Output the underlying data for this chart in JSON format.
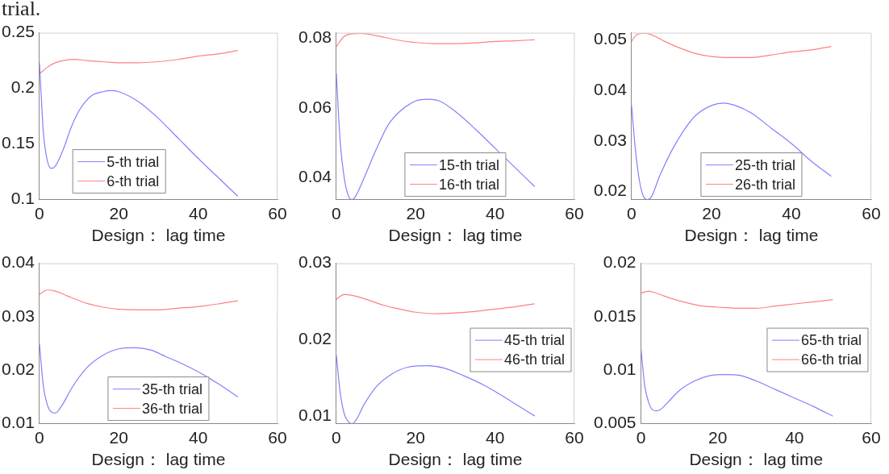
{
  "chart_data": [
    {
      "type": "line",
      "annotations": [
        "trial."
      ],
      "xlabel": "Design： lag time",
      "xlim": [
        0,
        60
      ],
      "xticks": [
        0,
        20,
        40,
        60
      ],
      "ylim": [
        0.1,
        0.25
      ],
      "yticks": [
        0.1,
        0.15,
        0.2,
        0.25
      ],
      "legend": "bottom left",
      "series": [
        {
          "name": "5-th trial",
          "color": "#8080ff",
          "x": [
            0,
            0.5,
            1,
            2,
            3,
            4,
            6,
            8,
            10,
            13,
            16,
            18,
            20,
            25,
            30,
            35,
            40,
            45,
            50
          ],
          "values": [
            0.223,
            0.19,
            0.16,
            0.135,
            0.128,
            0.13,
            0.145,
            0.165,
            0.18,
            0.193,
            0.197,
            0.198,
            0.197,
            0.188,
            0.173,
            0.155,
            0.137,
            0.12,
            0.103
          ]
        },
        {
          "name": "6-th trial",
          "color": "#ff8080",
          "x": [
            0,
            2,
            4,
            6,
            9,
            12,
            16,
            20,
            25,
            30,
            35,
            40,
            45,
            50
          ],
          "values": [
            0.213,
            0.219,
            0.223,
            0.225,
            0.226,
            0.225,
            0.224,
            0.223,
            0.223,
            0.224,
            0.226,
            0.229,
            0.231,
            0.234
          ]
        }
      ]
    },
    {
      "type": "line",
      "xlabel": "Design： lag time",
      "xlim": [
        0,
        60
      ],
      "xticks": [
        0,
        20,
        40,
        60
      ],
      "ylim": [
        0.0338,
        0.0815
      ],
      "yticks": [
        0.04,
        0.06,
        0.08
      ],
      "legend": "bottom",
      "series": [
        {
          "name": "15-th trial",
          "color": "#8080ff",
          "x": [
            0,
            1,
            2,
            3,
            4,
            5,
            7,
            10,
            13,
            16,
            20,
            23,
            26,
            30,
            35,
            40,
            45,
            50
          ],
          "values": [
            0.07,
            0.05,
            0.04,
            0.035,
            0.0338,
            0.035,
            0.04,
            0.048,
            0.055,
            0.059,
            0.062,
            0.0625,
            0.062,
            0.059,
            0.054,
            0.0485,
            0.043,
            0.0375
          ]
        },
        {
          "name": "16-th trial",
          "color": "#ff8080",
          "x": [
            0,
            2,
            4,
            6,
            10,
            15,
            20,
            25,
            30,
            35,
            40,
            45,
            50
          ],
          "values": [
            0.0775,
            0.0805,
            0.0812,
            0.0813,
            0.0807,
            0.0795,
            0.0787,
            0.0784,
            0.0784,
            0.0786,
            0.079,
            0.0792,
            0.0795
          ]
        }
      ]
    },
    {
      "type": "line",
      "xlabel": "Design： lag time",
      "xlim": [
        0,
        60
      ],
      "xticks": [
        0,
        20,
        40,
        60
      ],
      "ylim": [
        0.0184,
        0.0514
      ],
      "yticks": [
        0.02,
        0.03,
        0.04,
        0.05
      ],
      "legend": "bottom",
      "series": [
        {
          "name": "25-th trial",
          "color": "#8080ff",
          "x": [
            0,
            1,
            2,
            3,
            4,
            5,
            7,
            10,
            13,
            16,
            20,
            23,
            26,
            30,
            35,
            40,
            45,
            50
          ],
          "values": [
            0.037,
            0.028,
            0.022,
            0.019,
            0.0184,
            0.019,
            0.023,
            0.028,
            0.032,
            0.035,
            0.037,
            0.0375,
            0.037,
            0.0355,
            0.0325,
            0.0295,
            0.026,
            0.023
          ]
        },
        {
          "name": "26-th trial",
          "color": "#ff8080",
          "x": [
            0,
            1,
            3,
            5,
            8,
            12,
            16,
            20,
            25,
            30,
            35,
            40,
            45,
            50
          ],
          "values": [
            0.0497,
            0.0508,
            0.0513,
            0.051,
            0.0498,
            0.0484,
            0.0473,
            0.0467,
            0.0465,
            0.0465,
            0.047,
            0.0476,
            0.048,
            0.0487
          ]
        }
      ]
    },
    {
      "type": "line",
      "xlabel": "Design： lag time",
      "xlim": [
        0,
        60
      ],
      "xticks": [
        0,
        20,
        40,
        60
      ],
      "ylim": [
        0.01,
        0.04
      ],
      "yticks": [
        0.01,
        0.02,
        0.03,
        0.04
      ],
      "legend": "bottom",
      "series": [
        {
          "name": "35-th trial",
          "color": "#8080ff",
          "x": [
            0,
            1,
            2,
            3,
            4,
            6,
            8,
            12,
            16,
            20,
            24,
            28,
            32,
            36,
            40,
            45,
            50
          ],
          "values": [
            0.025,
            0.017,
            0.0135,
            0.0122,
            0.012,
            0.0138,
            0.0165,
            0.0205,
            0.0228,
            0.024,
            0.0242,
            0.0238,
            0.0225,
            0.0212,
            0.0197,
            0.0175,
            0.015
          ]
        },
        {
          "name": "36-th trial",
          "color": "#ff8080",
          "x": [
            0,
            2,
            4,
            8,
            12,
            16,
            20,
            25,
            30,
            35,
            40,
            45,
            50
          ],
          "values": [
            0.0342,
            0.035,
            0.0348,
            0.0336,
            0.0325,
            0.0318,
            0.0314,
            0.0313,
            0.0313,
            0.0316,
            0.0319,
            0.0324,
            0.033
          ]
        }
      ]
    },
    {
      "type": "line",
      "xlabel": "Design： lag time",
      "xlim": [
        0,
        60
      ],
      "xticks": [
        0,
        20,
        40,
        60
      ],
      "ylim": [
        0.009,
        0.03
      ],
      "yticks": [
        0.01,
        0.02,
        0.03
      ],
      "legend": "right",
      "series": [
        {
          "name": "45-th trial",
          "color": "#8080ff",
          "x": [
            0,
            1,
            2,
            3,
            4,
            5,
            7,
            10,
            14,
            18,
            23,
            27,
            32,
            37,
            42,
            46,
            50
          ],
          "values": [
            0.018,
            0.013,
            0.0103,
            0.0093,
            0.009,
            0.0095,
            0.0115,
            0.0138,
            0.0155,
            0.0164,
            0.0166,
            0.0163,
            0.0153,
            0.0141,
            0.0126,
            0.0113,
            0.01
          ]
        },
        {
          "name": "46-th trial",
          "color": "#ff8080",
          "x": [
            0,
            2,
            4,
            8,
            12,
            16,
            20,
            25,
            30,
            35,
            40,
            45,
            50
          ],
          "values": [
            0.0253,
            0.0259,
            0.0258,
            0.0252,
            0.0245,
            0.024,
            0.0236,
            0.0234,
            0.0235,
            0.0237,
            0.024,
            0.0243,
            0.0247
          ]
        }
      ]
    },
    {
      "type": "line",
      "xlabel": "Design： lag time",
      "xlim": [
        0,
        60
      ],
      "xticks": [
        0,
        20,
        40,
        60
      ],
      "ylim": [
        0.005,
        0.02
      ],
      "yticks": [
        0.005,
        0.01,
        0.015,
        0.02
      ],
      "legend": "right",
      "series": [
        {
          "name": "65-th trial",
          "color": "#8080ff",
          "x": [
            0,
            1,
            2,
            3,
            4,
            5,
            7,
            10,
            14,
            18,
            22,
            26,
            30,
            35,
            40,
            45,
            50
          ],
          "values": [
            0.012,
            0.0085,
            0.007,
            0.0063,
            0.0062,
            0.0063,
            0.007,
            0.0081,
            0.009,
            0.0095,
            0.0096,
            0.0095,
            0.009,
            0.0082,
            0.0074,
            0.0066,
            0.0057
          ]
        },
        {
          "name": "66-th trial",
          "color": "#ff8080",
          "x": [
            0,
            2,
            4,
            8,
            12,
            16,
            20,
            25,
            30,
            35,
            40,
            45,
            50
          ],
          "values": [
            0.0172,
            0.0174,
            0.0172,
            0.0167,
            0.0163,
            0.016,
            0.0159,
            0.0158,
            0.0158,
            0.016,
            0.0162,
            0.0164,
            0.0166
          ]
        }
      ]
    }
  ]
}
